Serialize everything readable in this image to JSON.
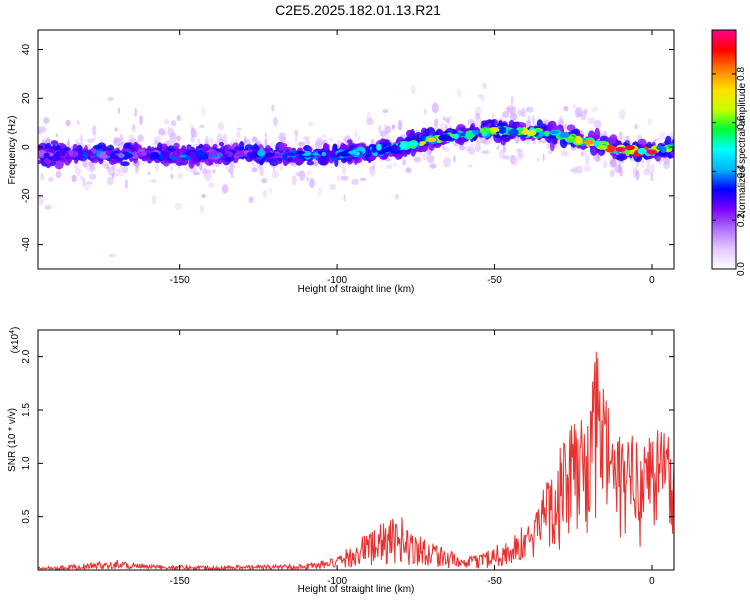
{
  "figure": {
    "title": "C2E5.2025.182.01.13.R21"
  },
  "chart_data": [
    {
      "type": "heatmap",
      "xlabel": "Height of straight line (km)",
      "ylabel": "Frequency (Hz)",
      "xlim": [
        -195,
        7
      ],
      "ylim": [
        -50,
        48
      ],
      "xticks": [
        -150,
        -100,
        -50,
        0
      ],
      "yticks": [
        -40,
        -20,
        0,
        20,
        40
      ],
      "colorbar": {
        "label": "Normalized spectral amplitude",
        "range": [
          0,
          0.98
        ],
        "ticks": [
          0.0,
          0.2,
          0.4,
          0.6,
          0.8
        ],
        "colormap": [
          "#ffffff",
          "#e6c8ff",
          "#b070ff",
          "#7d00ff",
          "#0000ff",
          "#00b4ff",
          "#00ffff",
          "#00ff30",
          "#c8ff00",
          "#ffe000",
          "#ff8000",
          "#ff0000",
          "#ff0090"
        ]
      },
      "ridge": {
        "x": [
          -195,
          -170,
          -150,
          -130,
          -110,
          -100,
          -90,
          -80,
          -70,
          -60,
          -50,
          -40,
          -30,
          -20,
          -10,
          0,
          6
        ],
        "frequency": [
          -3,
          -3,
          -3,
          -3,
          -3,
          -3,
          -2,
          0,
          3,
          5,
          7,
          6,
          5,
          2,
          -1,
          -2,
          0
        ],
        "peak_amplitude": [
          0.35,
          0.4,
          0.4,
          0.4,
          0.45,
          0.45,
          0.5,
          0.55,
          0.75,
          0.6,
          0.7,
          0.7,
          0.6,
          0.8,
          0.95,
          0.95,
          0.6
        ]
      }
    },
    {
      "type": "line",
      "xlabel": "Height of straight line (km)",
      "ylabel": "SNR (10 * v/v)",
      "multiplier_label": "(x10",
      "multiplier_exp": "4",
      "xlim": [
        -195,
        7
      ],
      "ylim": [
        0,
        2.25
      ],
      "xticks": [
        -150,
        -100,
        -50,
        0
      ],
      "yticks": [
        0.5,
        1.0,
        1.5,
        2.0
      ],
      "color": "#e8302e",
      "envelope": {
        "x": [
          -195,
          -180,
          -170,
          -160,
          -140,
          -120,
          -110,
          -100,
          -95,
          -90,
          -85,
          -80,
          -75,
          -70,
          -65,
          -60,
          -55,
          -50,
          -45,
          -40,
          -37,
          -35,
          -30,
          -25,
          -20,
          -17,
          -15,
          -12,
          -10,
          -5,
          0,
          3,
          7
        ],
        "y": [
          0.03,
          0.06,
          0.1,
          0.05,
          0.04,
          0.05,
          0.06,
          0.12,
          0.25,
          0.38,
          0.45,
          0.52,
          0.35,
          0.3,
          0.2,
          0.1,
          0.15,
          0.25,
          0.3,
          0.45,
          0.5,
          0.8,
          1.1,
          1.4,
          1.55,
          2.2,
          1.75,
          1.35,
          1.25,
          1.3,
          1.35,
          1.45,
          1.2
        ]
      }
    }
  ]
}
